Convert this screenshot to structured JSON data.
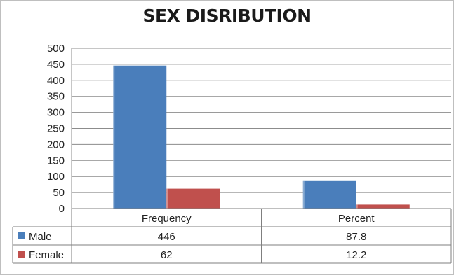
{
  "chart_data": {
    "type": "bar",
    "title": "SEX DISRIBUTION",
    "categories": [
      "Frequency",
      "Percent"
    ],
    "series": [
      {
        "name": "Male",
        "values": [
          446,
          87.8
        ],
        "color": "#4a7ebb"
      },
      {
        "name": "Female",
        "values": [
          62,
          12.2
        ],
        "color": "#c0504d"
      }
    ],
    "table_values": [
      [
        "446",
        "87.8"
      ],
      [
        "62",
        "12.2"
      ]
    ],
    "ylim": [
      0,
      500
    ],
    "yticks": [
      0,
      50,
      100,
      150,
      200,
      250,
      300,
      350,
      400,
      450,
      500
    ],
    "grid": true,
    "legend": "data-table"
  }
}
